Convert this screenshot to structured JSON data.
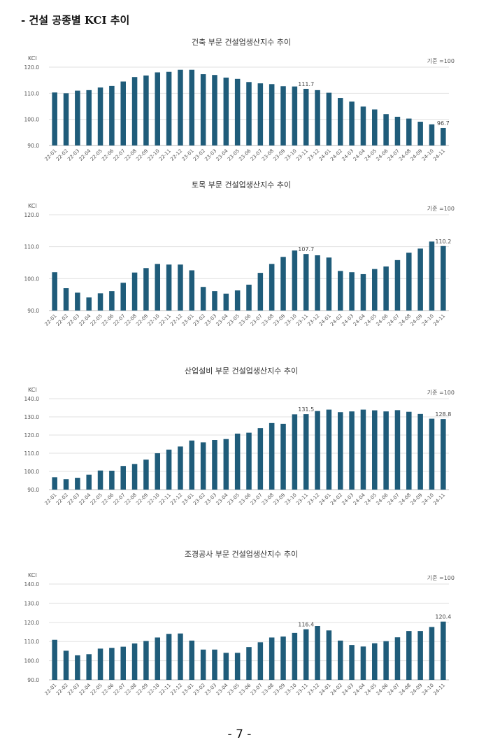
{
  "heading": "- 건설 공종별 KCI 추이",
  "page_number": "- 7 -",
  "colors": {
    "bar": "#1f5c7a",
    "grid": "#e2e2e2",
    "axis": "#bbbbbb",
    "text": "#555555"
  },
  "chart_data": [
    {
      "type": "bar",
      "title": "건축 부문 건설업생산지수 추이",
      "ylabel": "KCI",
      "note": "기준 =100",
      "ylim": [
        90,
        120
      ],
      "yticks": [
        90,
        100,
        110,
        120
      ],
      "ytick_labels": [
        "90.0",
        "100.0",
        "110.0",
        "120.0"
      ],
      "categories": [
        "22-01",
        "22-02",
        "22-03",
        "22-04",
        "22-05",
        "22-06",
        "22-07",
        "22-08",
        "22-09",
        "22-10",
        "22-11",
        "22-12",
        "23-01",
        "23-02",
        "23-03",
        "23-04",
        "23-05",
        "23-06",
        "23-07",
        "23-08",
        "23-09",
        "23-10",
        "23-11",
        "23-12",
        "24-01",
        "24-02",
        "24-03",
        "24-04",
        "24-05",
        "24-06",
        "24-07",
        "24-08",
        "24-09",
        "24-10",
        "24-11"
      ],
      "values": [
        110.3,
        110.0,
        111.0,
        111.2,
        112.2,
        112.8,
        114.5,
        116.2,
        116.8,
        118.0,
        118.2,
        119.0,
        119.0,
        117.3,
        117.0,
        116.0,
        115.5,
        114.3,
        113.8,
        113.5,
        112.7,
        112.6,
        111.7,
        111.2,
        110.2,
        108.2,
        106.8,
        104.9,
        103.8,
        102.0,
        101.0,
        100.3,
        99.1,
        98.1,
        96.7
      ],
      "data_labels": [
        {
          "index": 22,
          "text": "111.7"
        },
        {
          "index": 34,
          "text": "96.7"
        }
      ]
    },
    {
      "type": "bar",
      "title": "토목 부문 건설업생산지수 추이",
      "ylabel": "KCI",
      "note": "기준 =100",
      "ylim": [
        90,
        120
      ],
      "yticks": [
        90,
        100,
        110,
        120
      ],
      "ytick_labels": [
        "90.0",
        "100.0",
        "110.0",
        "120.0"
      ],
      "categories": [
        "22-01",
        "22-02",
        "22-03",
        "22-04",
        "22-05",
        "22-06",
        "22-07",
        "22-08",
        "22-09",
        "22-10",
        "22-11",
        "22-12",
        "23-01",
        "23-02",
        "23-03",
        "23-04",
        "23-05",
        "23-06",
        "23-07",
        "23-08",
        "23-09",
        "23-10",
        "23-11",
        "23-12",
        "24-01",
        "24-02",
        "24-03",
        "24-04",
        "24-05",
        "24-06",
        "24-07",
        "24-08",
        "24-09",
        "24-10",
        "24-11"
      ],
      "values": [
        102.0,
        97.0,
        95.6,
        94.1,
        95.4,
        96.1,
        98.7,
        101.9,
        103.3,
        104.6,
        104.4,
        104.4,
        102.6,
        97.4,
        96.1,
        95.3,
        96.3,
        98.1,
        101.8,
        104.6,
        106.8,
        108.8,
        107.7,
        107.3,
        106.6,
        102.4,
        102.0,
        101.4,
        103.0,
        103.8,
        105.8,
        108.1,
        109.4,
        111.6,
        110.2
      ],
      "data_labels": [
        {
          "index": 22,
          "text": "107.7"
        },
        {
          "index": 34,
          "text": "110.2"
        }
      ]
    },
    {
      "type": "bar",
      "title": "산업설비 부문 건설업생산지수 추이",
      "ylabel": "KCI",
      "note": "기준 =100",
      "ylim": [
        90,
        140
      ],
      "yticks": [
        90,
        100,
        110,
        120,
        130,
        140
      ],
      "ytick_labels": [
        "90.0",
        "100.0",
        "110.0",
        "120.0",
        "130.0",
        "140.0"
      ],
      "categories": [
        "22-01",
        "22-02",
        "22-03",
        "22-04",
        "22-05",
        "22-06",
        "22-07",
        "22-08",
        "22-09",
        "22-10",
        "22-11",
        "22-12",
        "23-01",
        "23-02",
        "23-03",
        "23-04",
        "23-05",
        "23-06",
        "23-07",
        "23-08",
        "23-09",
        "23-10",
        "23-11",
        "23-12",
        "24-01",
        "24-02",
        "24-03",
        "24-04",
        "24-05",
        "24-06",
        "24-07",
        "24-08",
        "24-09",
        "24-10",
        "24-11"
      ],
      "values": [
        96.8,
        95.7,
        96.5,
        98.2,
        100.5,
        100.4,
        103.0,
        104.1,
        106.5,
        110.0,
        112.0,
        113.7,
        117.0,
        116.0,
        117.3,
        117.8,
        120.8,
        121.3,
        123.8,
        126.6,
        126.2,
        131.4,
        131.5,
        133.2,
        134.0,
        132.6,
        133.0,
        134.0,
        133.6,
        133.0,
        133.7,
        132.8,
        131.6,
        129.0,
        128.8
      ],
      "data_labels": [
        {
          "index": 22,
          "text": "131.5"
        },
        {
          "index": 34,
          "text": "128.8"
        }
      ]
    },
    {
      "type": "bar",
      "title": "조경공사 부문 건설업생산지수 추이",
      "ylabel": "KCI",
      "note": "기준 =100",
      "ylim": [
        90,
        140
      ],
      "yticks": [
        90,
        100,
        110,
        120,
        130,
        140
      ],
      "ytick_labels": [
        "90.0",
        "100.0",
        "110.0",
        "120.0",
        "130.0",
        "140.0"
      ],
      "categories": [
        "22-01",
        "22-02",
        "22-03",
        "22-04",
        "22-05",
        "22-06",
        "22-07",
        "22-08",
        "22-09",
        "22-10",
        "22-11",
        "22-12",
        "23-01",
        "23-02",
        "23-03",
        "23-04",
        "23-05",
        "23-06",
        "23-07",
        "23-08",
        "23-09",
        "23-10",
        "23-11",
        "23-12",
        "24-01",
        "24-02",
        "24-03",
        "24-04",
        "24-05",
        "24-06",
        "24-07",
        "24-08",
        "24-09",
        "24-10",
        "24-11"
      ],
      "values": [
        110.9,
        105.2,
        102.8,
        103.4,
        106.3,
        106.7,
        107.3,
        109.0,
        110.3,
        112.1,
        114.0,
        114.2,
        110.5,
        105.8,
        105.8,
        104.1,
        104.1,
        107.1,
        109.6,
        112.1,
        112.6,
        114.5,
        116.4,
        118.1,
        115.8,
        110.5,
        108.2,
        107.4,
        109.1,
        110.2,
        112.2,
        115.5,
        115.5,
        117.6,
        120.4
      ],
      "data_labels": [
        {
          "index": 22,
          "text": "116.4"
        },
        {
          "index": 34,
          "text": "120.4"
        }
      ]
    }
  ]
}
